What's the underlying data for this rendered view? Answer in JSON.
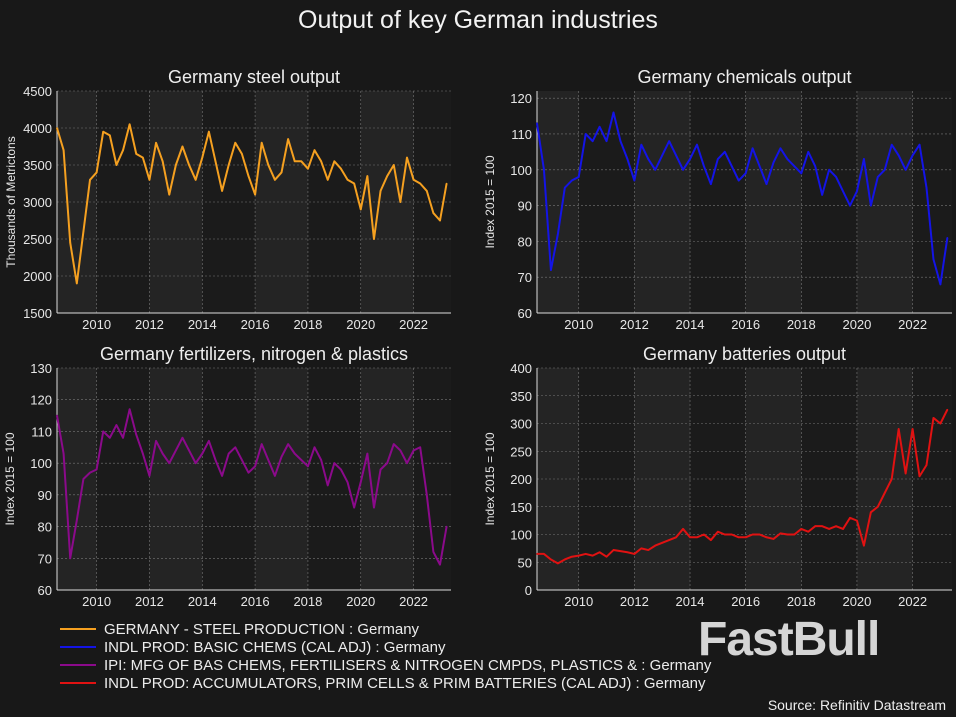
{
  "title": "Output of key German industries",
  "source": "Source: Refinitiv Datastream",
  "watermark": "FastBull",
  "x_dates": [
    "2008-07",
    "2008-10",
    "2009-01",
    "2009-04",
    "2009-07",
    "2009-10",
    "2010-01",
    "2010-04",
    "2010-07",
    "2010-10",
    "2011-01",
    "2011-04",
    "2011-07",
    "2011-10",
    "2012-01",
    "2012-04",
    "2012-07",
    "2012-10",
    "2013-01",
    "2013-04",
    "2013-07",
    "2013-10",
    "2014-01",
    "2014-04",
    "2014-07",
    "2014-10",
    "2015-01",
    "2015-04",
    "2015-07",
    "2015-10",
    "2016-01",
    "2016-04",
    "2016-07",
    "2016-10",
    "2017-01",
    "2017-04",
    "2017-07",
    "2017-10",
    "2018-01",
    "2018-04",
    "2018-07",
    "2018-10",
    "2019-01",
    "2019-04",
    "2019-07",
    "2019-10",
    "2020-01",
    "2020-04",
    "2020-07",
    "2020-10",
    "2021-01",
    "2021-04",
    "2021-07",
    "2021-10",
    "2022-01",
    "2022-04",
    "2022-07",
    "2022-10",
    "2023-01",
    "2023-04"
  ],
  "chart_data": [
    {
      "type": "line",
      "title": "Germany steel output",
      "ylabel": "Thousands of Metrictons",
      "ylim": [
        1500,
        4500
      ],
      "yticks": [
        "1500",
        "2000",
        "2500",
        "3000",
        "3500",
        "4000",
        "4500"
      ],
      "xlim": [
        "2008-07",
        "2023-06"
      ],
      "xticks": [
        "2010",
        "2012",
        "2014",
        "2016",
        "2018",
        "2020",
        "2022"
      ],
      "grid": true,
      "color": "#f5a020",
      "values": [
        4000,
        3700,
        2450,
        1900,
        2600,
        3300,
        3400,
        3950,
        3900,
        3500,
        3700,
        4050,
        3650,
        3600,
        3300,
        3800,
        3550,
        3100,
        3500,
        3750,
        3500,
        3300,
        3600,
        3950,
        3550,
        3150,
        3500,
        3800,
        3650,
        3350,
        3100,
        3800,
        3500,
        3300,
        3400,
        3850,
        3550,
        3550,
        3450,
        3700,
        3550,
        3300,
        3550,
        3450,
        3300,
        3250,
        2900,
        3350,
        2500,
        3150,
        3350,
        3500,
        3000,
        3600,
        3300,
        3250,
        3150,
        2850,
        2750,
        3250
      ]
    },
    {
      "type": "line",
      "title": "Germany chemicals output",
      "ylabel": "Index 2015 = 100",
      "ylim": [
        60,
        122
      ],
      "yticks": [
        "60",
        "70",
        "80",
        "90",
        "100",
        "110",
        "120"
      ],
      "xlim": [
        "2008-07",
        "2023-06"
      ],
      "xticks": [
        "2010",
        "2012",
        "2014",
        "2016",
        "2018",
        "2020",
        "2022"
      ],
      "grid": true,
      "color": "#1414e6",
      "values": [
        113,
        100,
        72,
        82,
        95,
        97,
        98,
        110,
        108,
        112,
        108,
        116,
        108,
        103,
        97,
        107,
        103,
        100,
        104,
        108,
        104,
        100,
        103,
        107,
        101,
        96,
        103,
        105,
        101,
        97,
        99,
        106,
        101,
        96,
        102,
        106,
        103,
        101,
        99,
        105,
        101,
        93,
        100,
        98,
        94,
        90,
        94,
        103,
        90,
        98,
        100,
        107,
        104,
        100,
        104,
        107,
        95,
        75,
        68,
        81
      ]
    },
    {
      "type": "line",
      "title": "Germany fertilizers, nitrogen & plastics",
      "ylabel": "Index 2015 = 100",
      "ylim": [
        60,
        130
      ],
      "yticks": [
        "60",
        "70",
        "80",
        "90",
        "100",
        "110",
        "120",
        "130"
      ],
      "xlim": [
        "2008-07",
        "2023-06"
      ],
      "xticks": [
        "2010",
        "2012",
        "2014",
        "2016",
        "2018",
        "2020",
        "2022"
      ],
      "grid": true,
      "color": "#8b0a8b",
      "values": [
        115,
        103,
        70,
        82,
        95,
        97,
        98,
        110,
        108,
        112,
        108,
        117,
        109,
        103,
        96,
        107,
        103,
        100,
        104,
        108,
        104,
        100,
        103,
        107,
        101,
        96,
        103,
        105,
        101,
        97,
        99,
        106,
        101,
        96,
        102,
        106,
        103,
        101,
        99,
        105,
        101,
        93,
        100,
        98,
        94,
        86,
        94,
        103,
        86,
        98,
        100,
        106,
        104,
        100,
        104,
        105,
        90,
        72,
        68,
        80
      ]
    },
    {
      "type": "line",
      "title": "Germany batteries output",
      "ylabel": "Index 2015 = 100",
      "ylim": [
        0,
        400
      ],
      "yticks": [
        "0",
        "50",
        "100",
        "150",
        "200",
        "250",
        "300",
        "350",
        "400"
      ],
      "xlim": [
        "2008-07",
        "2023-06"
      ],
      "xticks": [
        "2010",
        "2012",
        "2014",
        "2016",
        "2018",
        "2020",
        "2022"
      ],
      "grid": true,
      "color": "#e01212",
      "values": [
        65,
        65,
        55,
        48,
        55,
        60,
        62,
        65,
        62,
        68,
        60,
        72,
        70,
        68,
        65,
        75,
        72,
        80,
        85,
        90,
        95,
        110,
        95,
        95,
        100,
        90,
        105,
        100,
        100,
        95,
        95,
        100,
        100,
        95,
        92,
        102,
        100,
        100,
        110,
        105,
        115,
        115,
        110,
        115,
        110,
        130,
        125,
        80,
        140,
        150,
        175,
        200,
        290,
        210,
        290,
        205,
        225,
        310,
        300,
        325
      ]
    }
  ],
  "legend": {
    "placement": "bottom-left",
    "entries": [
      {
        "label": "GERMANY - STEEL PRODUCTION : Germany",
        "color": "#f5a020"
      },
      {
        "label": "INDL PROD: BASIC CHEMS (CAL ADJ) : Germany",
        "color": "#1414e6"
      },
      {
        "label": "IPI: MFG OF BAS CHEMS, FERTILISERS & NITROGEN CMPDS, PLASTICS & : Germany",
        "color": "#8b0a8b"
      },
      {
        "label": "INDL PROD: ACCUMULATORS, PRIM CELLS & PRIM BATTERIES (CAL ADJ) : Germany",
        "color": "#e01212"
      }
    ]
  }
}
